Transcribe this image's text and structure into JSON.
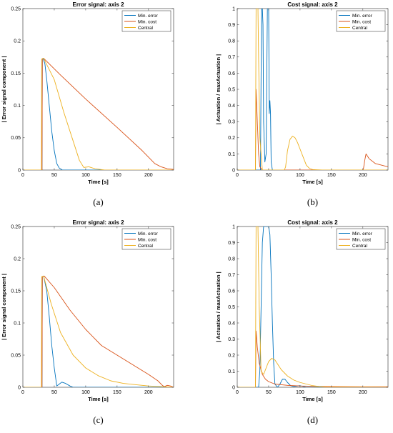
{
  "colors": {
    "min_error": "#0072BD",
    "min_cost": "#D95319",
    "central": "#EDB120"
  },
  "chart_data": [
    {
      "type": "line",
      "title": "Error signal: axis 2",
      "xlabel": "Time [s]",
      "ylabel": "| Error signal component |",
      "caption": "(a)",
      "xlim": [
        0,
        240
      ],
      "ylim": [
        0,
        0.25
      ],
      "xticks": [
        0,
        50,
        100,
        150,
        200
      ],
      "yticks": [
        0,
        0.05,
        0.1,
        0.15,
        0.2,
        0.25
      ],
      "ytick_labels": [
        "0",
        "0.05",
        "0.1",
        "0.15",
        "0.2",
        "0.25"
      ],
      "legend_position": "top-right",
      "grid": false,
      "series": [
        {
          "name": "Min. error",
          "color": "#0072BD",
          "x": [
            0,
            30.5,
            31,
            32,
            35,
            38,
            42,
            46,
            50,
            54,
            58,
            63,
            240
          ],
          "y": [
            0,
            0,
            0.172,
            0.173,
            0.165,
            0.14,
            0.1,
            0.06,
            0.03,
            0.01,
            0.003,
            0,
            0
          ]
        },
        {
          "name": "Min. cost",
          "color": "#D95319",
          "x": [
            0,
            30.5,
            31,
            33,
            60,
            100,
            150,
            190,
            205,
            210,
            220,
            230,
            240
          ],
          "y": [
            0,
            0,
            0.172,
            0.173,
            0.147,
            0.11,
            0.066,
            0.03,
            0.015,
            0.01,
            0.005,
            0.002,
            0.001
          ]
        },
        {
          "name": "Central",
          "color": "#EDB120",
          "x": [
            0,
            29.5,
            30,
            33,
            50,
            65,
            80,
            90,
            97,
            105,
            115,
            130,
            240
          ],
          "y": [
            0,
            0,
            0.172,
            0.173,
            0.14,
            0.09,
            0.045,
            0.015,
            0.004,
            0.005,
            0.002,
            0,
            0
          ]
        }
      ]
    },
    {
      "type": "line",
      "title": "Cost signal: axis 2",
      "xlabel": "Time [s]",
      "ylabel": "| Actuation / maxActuation |",
      "caption": "(b)",
      "xlim": [
        0,
        240
      ],
      "ylim": [
        0,
        1
      ],
      "xticks": [
        0,
        50,
        100,
        150,
        200
      ],
      "yticks": [
        0,
        0.1,
        0.2,
        0.3,
        0.4,
        0.5,
        0.6,
        0.7,
        0.8,
        0.9,
        1
      ],
      "ytick_labels": [
        "0",
        "0.1",
        "0.2",
        "0.3",
        "0.4",
        "0.5",
        "0.6",
        "0.7",
        "0.8",
        "0.9",
        "1"
      ],
      "legend_position": "top-right",
      "grid": false,
      "series": [
        {
          "name": "Min. error",
          "color": "#0072BD",
          "x": [
            0,
            37,
            38,
            39,
            40,
            41,
            42,
            44,
            46,
            48,
            49,
            50,
            51,
            52,
            53,
            54,
            56,
            240
          ],
          "y": [
            0,
            0,
            0.6,
            1,
            1,
            0.9,
            0.3,
            0.05,
            0.1,
            1,
            1,
            1,
            0.35,
            0.43,
            0.35,
            0.05,
            0,
            0
          ]
        },
        {
          "name": "Min. cost",
          "color": "#D95319",
          "x": [
            0,
            29,
            30,
            32,
            34,
            36,
            40,
            45,
            200,
            201,
            203,
            205,
            210,
            220,
            240
          ],
          "y": [
            0,
            0,
            0.5,
            0.3,
            0.1,
            0.02,
            0,
            0,
            0,
            0.01,
            0.06,
            0.1,
            0.07,
            0.04,
            0.02
          ]
        },
        {
          "name": "Central",
          "color": "#EDB120",
          "x": [
            0,
            29,
            30,
            31,
            32,
            33,
            34,
            36,
            40,
            75,
            77,
            80,
            84,
            88,
            92,
            96,
            100,
            105,
            110,
            115,
            120,
            135,
            240
          ],
          "y": [
            0,
            0,
            1,
            1,
            1,
            1,
            0.7,
            0.2,
            0,
            0,
            0.02,
            0.12,
            0.19,
            0.21,
            0.2,
            0.17,
            0.13,
            0.08,
            0.03,
            0.01,
            0.003,
            0,
            0
          ]
        }
      ]
    },
    {
      "type": "line",
      "title": "Error signal: axis 2",
      "xlabel": "Time [s]",
      "ylabel": "| Error signal component |",
      "caption": "(c)",
      "xlim": [
        0,
        240
      ],
      "ylim": [
        0,
        0.25
      ],
      "xticks": [
        0,
        50,
        100,
        150,
        200
      ],
      "yticks": [
        0,
        0.05,
        0.1,
        0.15,
        0.2,
        0.25
      ],
      "ytick_labels": [
        "0",
        "0.05",
        "0.1",
        "0.15",
        "0.2",
        "0.25"
      ],
      "legend_position": "top-right",
      "grid": false,
      "series": [
        {
          "name": "Min. error",
          "color": "#0072BD",
          "x": [
            0,
            30.5,
            31,
            33,
            38,
            42,
            46,
            50,
            54,
            58,
            62,
            68,
            75,
            80,
            240
          ],
          "y": [
            0,
            0,
            0.172,
            0.173,
            0.15,
            0.11,
            0.065,
            0.03,
            0.002,
            0.005,
            0.008,
            0.006,
            0.002,
            0,
            0
          ]
        },
        {
          "name": "Min. cost",
          "color": "#D95319",
          "x": [
            0,
            30.5,
            31,
            34,
            50,
            75,
            100,
            125,
            150,
            175,
            200,
            215,
            222,
            225,
            230,
            235,
            240
          ],
          "y": [
            0,
            0,
            0.172,
            0.173,
            0.155,
            0.12,
            0.09,
            0.065,
            0.05,
            0.035,
            0.02,
            0.01,
            0.003,
            0.001,
            0.003,
            0.002,
            0
          ]
        },
        {
          "name": "Central",
          "color": "#EDB120",
          "x": [
            0,
            29.5,
            30,
            33,
            45,
            60,
            80,
            100,
            120,
            140,
            160,
            180,
            200,
            240
          ],
          "y": [
            0,
            0,
            0.172,
            0.173,
            0.13,
            0.085,
            0.05,
            0.03,
            0.018,
            0.01,
            0.006,
            0.004,
            0.002,
            0
          ]
        }
      ]
    },
    {
      "type": "line",
      "title": "Cost signal: axis 2",
      "xlabel": "Time [s]",
      "ylabel": "| Actuation / maxActuation |",
      "caption": "(d)",
      "xlim": [
        0,
        240
      ],
      "ylim": [
        0,
        1
      ],
      "xticks": [
        0,
        50,
        100,
        150,
        200
      ],
      "yticks": [
        0,
        0.1,
        0.2,
        0.3,
        0.4,
        0.5,
        0.6,
        0.7,
        0.8,
        0.9,
        1
      ],
      "ytick_labels": [
        "0",
        "0.1",
        "0.2",
        "0.3",
        "0.4",
        "0.5",
        "0.6",
        "0.7",
        "0.8",
        "0.9",
        "1"
      ],
      "legend_position": "top-right",
      "grid": false,
      "series": [
        {
          "name": "Min. error",
          "color": "#0072BD",
          "x": [
            0,
            34,
            36,
            38,
            40,
            42,
            44,
            46,
            48,
            50,
            52,
            54,
            56,
            58,
            60,
            64,
            68,
            72,
            76,
            80,
            85,
            90,
            100,
            110,
            240
          ],
          "y": [
            0,
            0,
            0.1,
            0.5,
            0.9,
            1,
            1,
            1,
            1,
            1,
            0.95,
            0.7,
            0.4,
            0.15,
            0.02,
            0,
            0.02,
            0.05,
            0.05,
            0.03,
            0.01,
            0.005,
            0.01,
            0,
            0
          ]
        },
        {
          "name": "Min. cost",
          "color": "#D95319",
          "x": [
            0,
            29,
            30,
            32,
            35,
            40,
            45,
            50,
            60,
            80,
            100,
            130,
            160,
            200,
            240
          ],
          "y": [
            0,
            0,
            0.35,
            0.25,
            0.15,
            0.08,
            0.05,
            0.035,
            0.02,
            0.012,
            0.008,
            0.005,
            0.004,
            0.003,
            0.003
          ]
        },
        {
          "name": "Central",
          "color": "#EDB120",
          "x": [
            0,
            29,
            30,
            31,
            33,
            35,
            38,
            42,
            46,
            50,
            55,
            60,
            65,
            70,
            80,
            90,
            100,
            110,
            120,
            130,
            140,
            240
          ],
          "y": [
            0,
            0,
            1,
            1,
            1,
            0.5,
            0.1,
            0.08,
            0.12,
            0.16,
            0.18,
            0.17,
            0.14,
            0.11,
            0.07,
            0.045,
            0.03,
            0.02,
            0.01,
            0.005,
            0.002,
            0
          ]
        }
      ]
    }
  ]
}
